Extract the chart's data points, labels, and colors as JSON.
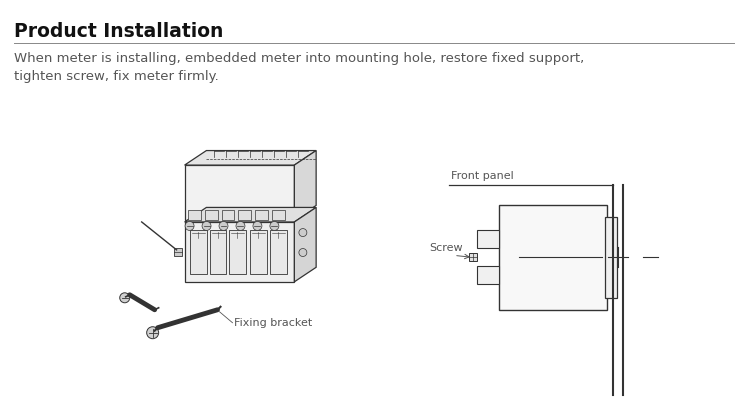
{
  "title": "Product Installation",
  "desc1": "When meter is installing, embedded meter into mounting hole, restore fixed support,",
  "desc2": "tighten screw, fix meter firmly.",
  "label_fixing": "Fixing bracket",
  "label_front": "Front panel",
  "label_screw": "Screw",
  "bg": "#ffffff",
  "lc": "#666666",
  "lc_dark": "#333333",
  "tc": "#555555",
  "title_c": "#111111",
  "fill_light": "#f5f5f5",
  "fill_mid": "#e8e8e8",
  "fill_dark": "#d0d0d0"
}
